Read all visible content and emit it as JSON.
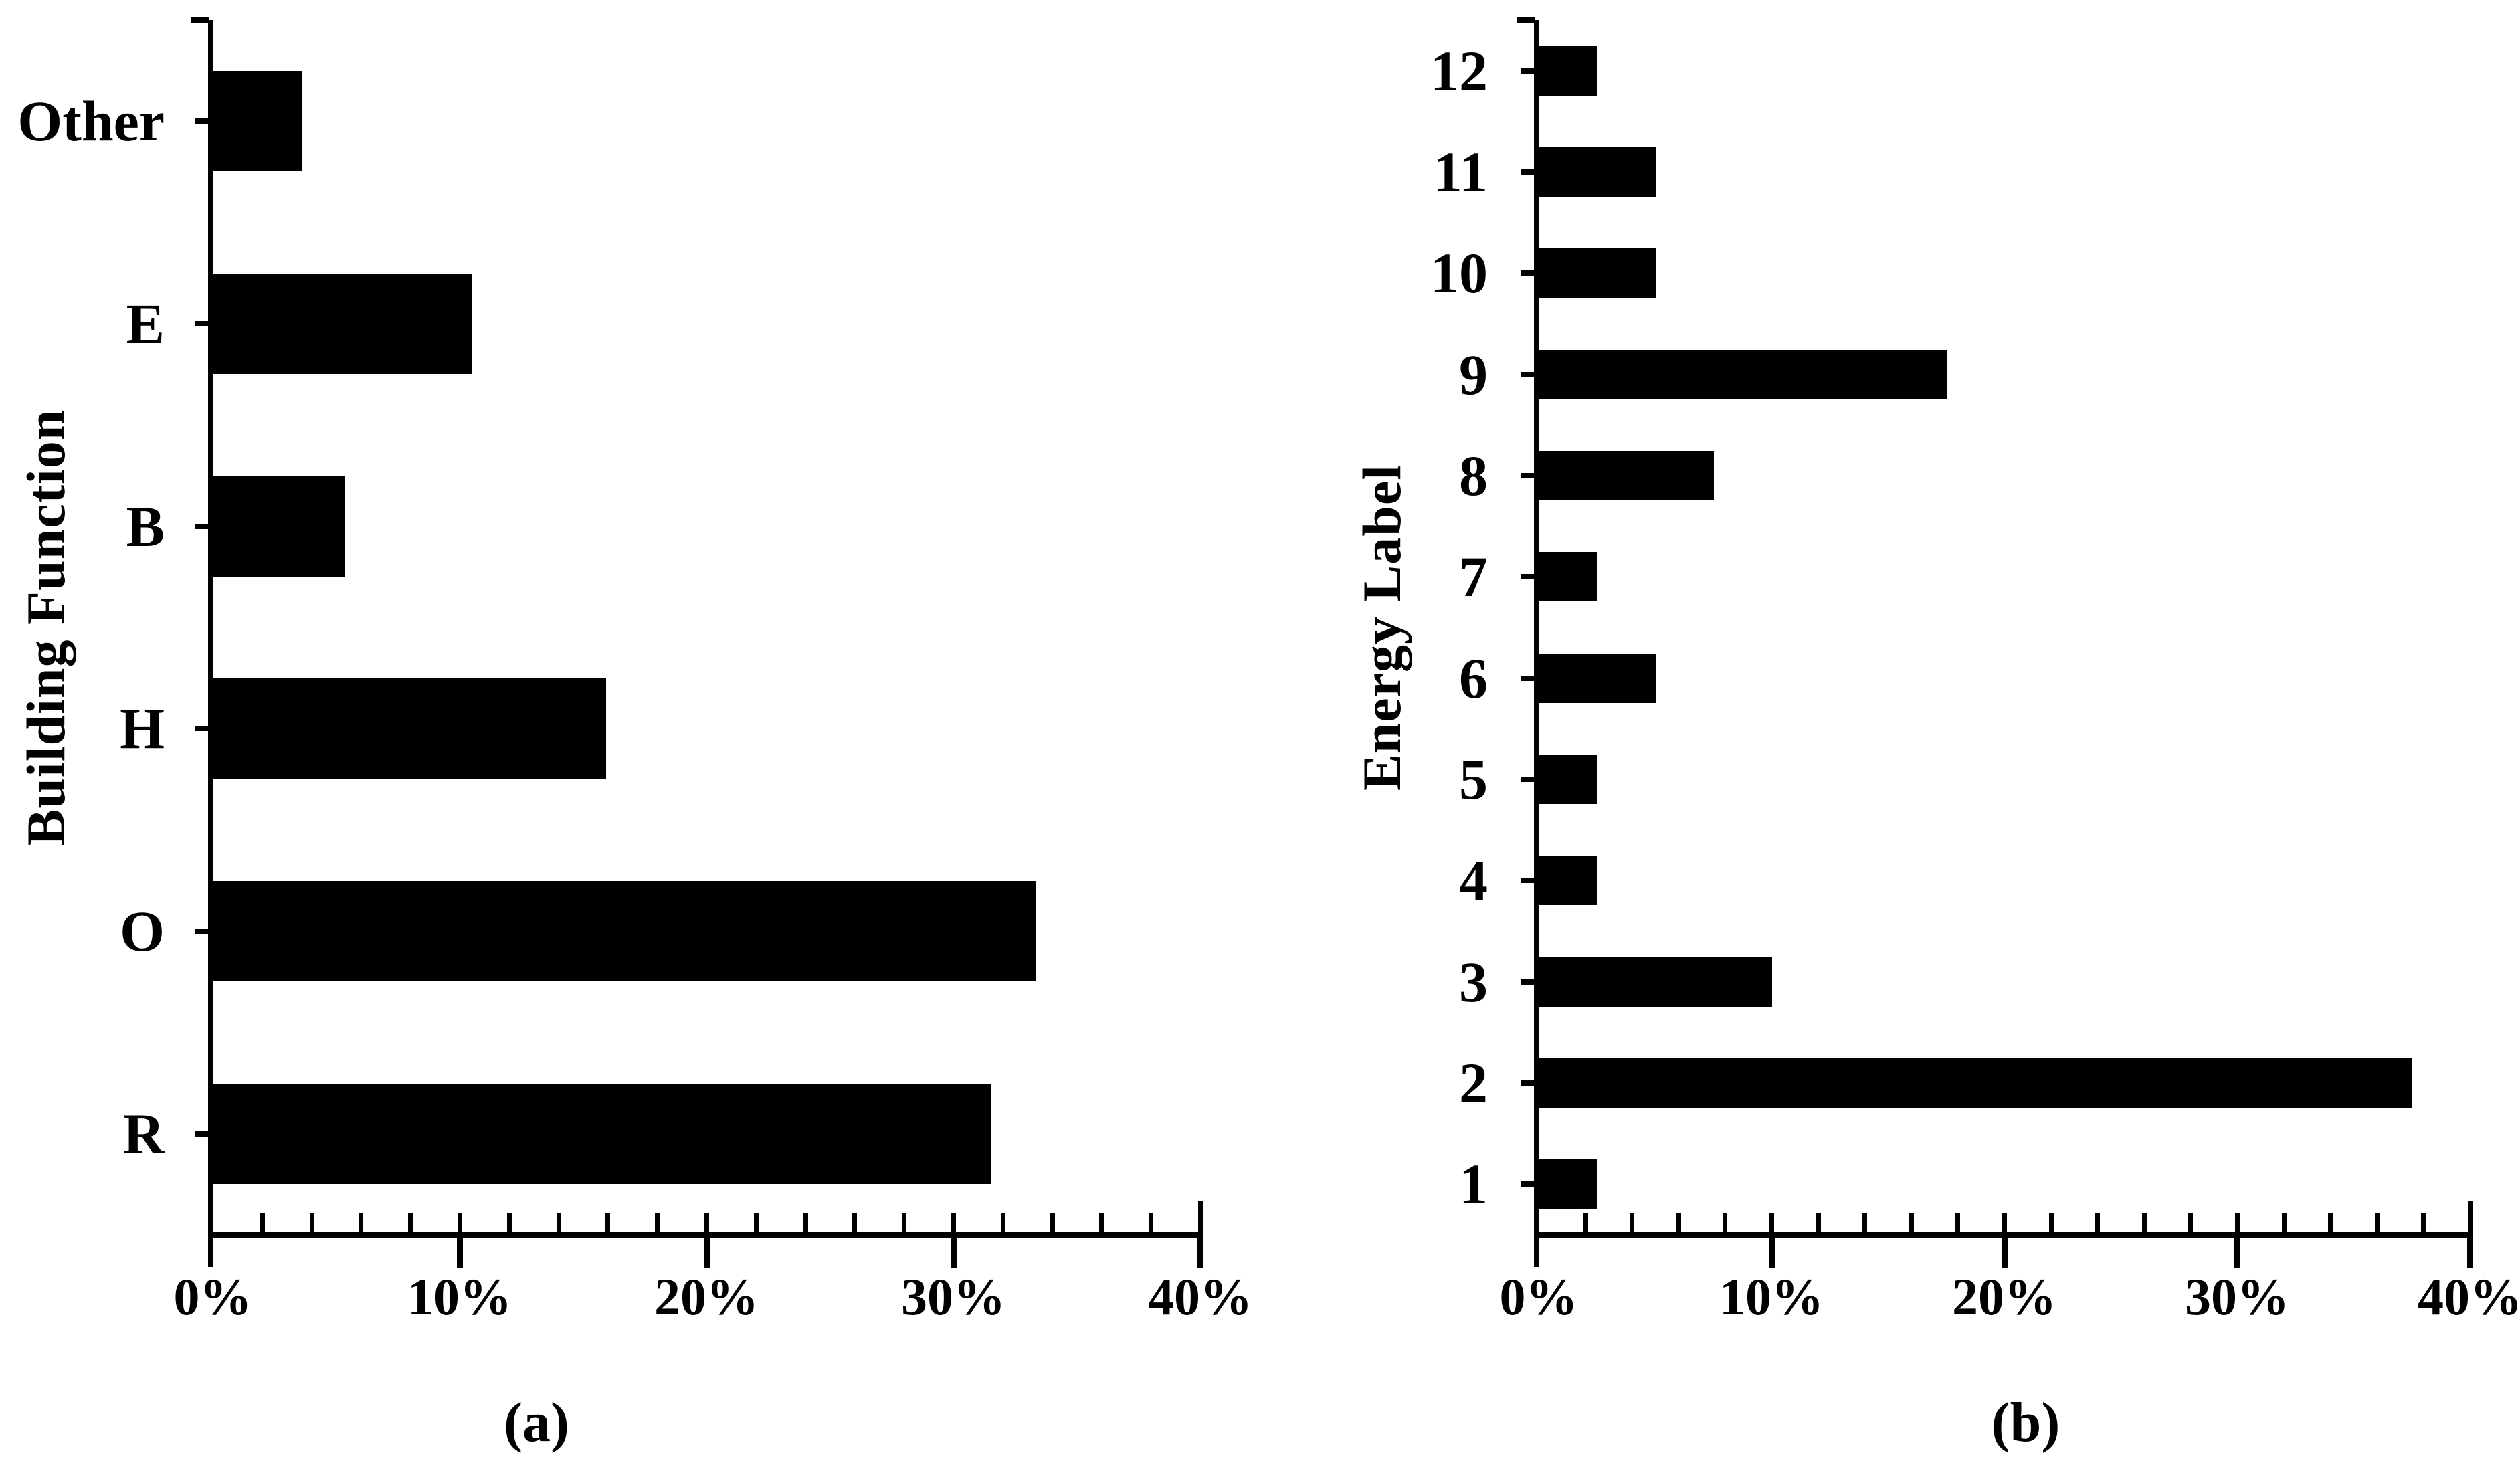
{
  "figure": {
    "background_color": "#ffffff",
    "ink_color": "#000000"
  },
  "chart_data": [
    {
      "panel": "a",
      "type": "bar",
      "orientation": "horizontal",
      "caption": "(a)",
      "title": "",
      "ylabel": "Building Function",
      "xlabel": "",
      "categories": [
        "Other",
        "E",
        "B",
        "H",
        "O",
        "R"
      ],
      "values": [
        3.6,
        10.5,
        5.3,
        15.9,
        33.3,
        31.5
      ],
      "value_unit": "%",
      "xlim": [
        0,
        40
      ],
      "x_tick_labels": [
        "0%",
        "10%",
        "20%",
        "30%",
        "40%"
      ],
      "x_major_tick_step_pct": 10,
      "x_minor_tick_step_pct": 2,
      "bar_color": "#000000",
      "grid": false,
      "legend": false
    },
    {
      "panel": "b",
      "type": "bar",
      "orientation": "horizontal",
      "caption": "(b)",
      "title": "",
      "ylabel": "Energy Label",
      "xlabel": "",
      "categories": [
        "12",
        "11",
        "10",
        "9",
        "8",
        "7",
        "6",
        "5",
        "4",
        "3",
        "2",
        "1"
      ],
      "values": [
        2.5,
        5,
        5,
        17.5,
        7.5,
        2.5,
        5,
        2.5,
        2.5,
        10,
        37.5,
        2.5
      ],
      "value_unit": "%",
      "xlim": [
        0,
        40
      ],
      "x_tick_labels": [
        "0%",
        "10%",
        "20%",
        "30%",
        "40%"
      ],
      "x_major_tick_step_pct": 10,
      "x_minor_tick_step_pct": 2,
      "bar_color": "#000000",
      "grid": false,
      "legend": false
    }
  ]
}
